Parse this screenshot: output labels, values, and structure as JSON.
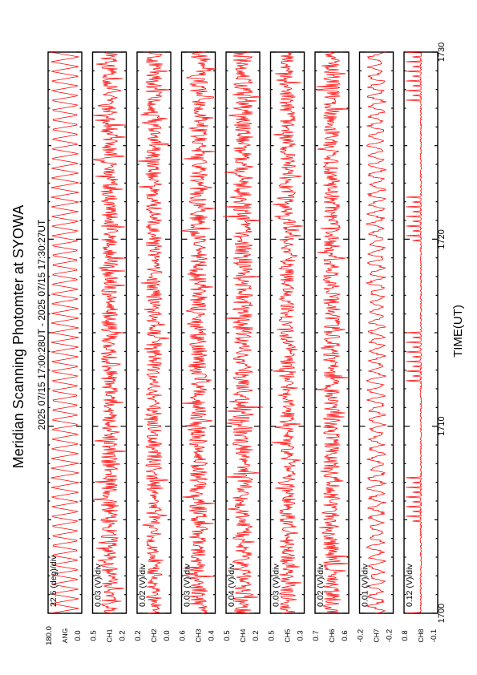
{
  "header": {
    "title": "Meridian Scanning Photomter at SYOWA",
    "time_range": "2025 07/15 17:00:28UT - 2025 07/15 17:30:27UT"
  },
  "chart_data": {
    "type": "line",
    "orientation": "rotated 90 degrees counter-clockwise (time runs bottom to top)",
    "xlabel": "TIME(UT)",
    "xlim": [
      "1700",
      "1730"
    ],
    "x_ticks": [
      {
        "label": "1700",
        "pos": 0
      },
      {
        "label": "1710",
        "pos": 10
      },
      {
        "label": "1720",
        "pos": 20
      },
      {
        "label": "1730",
        "pos": 30
      }
    ],
    "line_color": "#ff0000",
    "panels": [
      {
        "name": "panel-angle",
        "scale_text": "22.5 (deg)/div",
        "tick_labels": [
          "180.0",
          "0.0"
        ],
        "channel_label": "ANG",
        "kind": "scan",
        "cycles": 58
      },
      {
        "name": "panel-1",
        "scale_text": "0.03 (V)/div",
        "tick_labels": [
          "0.5",
          "0.2"
        ],
        "channel_label": "CH1",
        "kind": "noise",
        "amp": 0.32,
        "seed": 11
      },
      {
        "name": "panel-2",
        "scale_text": "0.02 (V)/div",
        "tick_labels": [
          "0.2",
          "0.0"
        ],
        "channel_label": "CH2",
        "kind": "noise",
        "amp": 0.3,
        "seed": 23
      },
      {
        "name": "panel-3",
        "scale_text": "0.03 (V)/div",
        "tick_labels": [
          "0.6",
          "0.4"
        ],
        "channel_label": "CH3",
        "kind": "noise",
        "amp": 0.34,
        "seed": 37
      },
      {
        "name": "panel-4",
        "scale_text": "0.04 (V)/div",
        "tick_labels": [
          "0.5",
          "0.2"
        ],
        "channel_label": "CH4",
        "kind": "noise",
        "amp": 0.38,
        "seed": 41
      },
      {
        "name": "panel-5",
        "scale_text": "0.03 (V)/div",
        "tick_labels": [
          "0.5",
          "0.3"
        ],
        "channel_label": "CH5",
        "kind": "noise",
        "amp": 0.3,
        "seed": 53
      },
      {
        "name": "panel-6",
        "scale_text": "0.02 (V)/div",
        "tick_labels": [
          "0.7",
          "0.6"
        ],
        "channel_label": "CH6",
        "kind": "noise",
        "amp": 0.32,
        "seed": 67
      },
      {
        "name": "panel-7",
        "scale_text": "0.01 (V)/div",
        "tick_labels": [
          "-0.2",
          "-0.2"
        ],
        "channel_label": "CH7",
        "kind": "wave",
        "amp": 0.3,
        "seed": 79
      },
      {
        "name": "panel-8",
        "scale_text": "0.12 (V)/div",
        "tick_labels": [
          "0.8",
          "-0.1"
        ],
        "channel_label": "CH8",
        "kind": "pulses",
        "amp": 0.45,
        "seed": 83,
        "cycles": 58
      }
    ]
  }
}
